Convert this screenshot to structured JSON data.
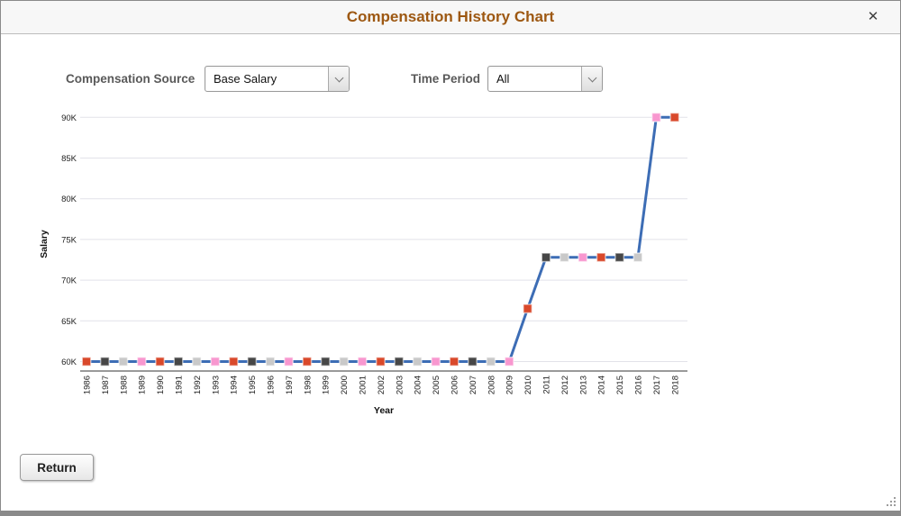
{
  "window": {
    "title": "Compensation History Chart",
    "close_icon": "✕"
  },
  "controls": {
    "comp_source_label": "Compensation Source",
    "comp_source_value": "Base Salary",
    "time_period_label": "Time Period",
    "time_period_value": "All"
  },
  "chart_data": {
    "type": "line",
    "title": "",
    "xlabel": "Year",
    "ylabel": "Salary",
    "x": [
      1986,
      1987,
      1988,
      1989,
      1990,
      1991,
      1992,
      1993,
      1994,
      1995,
      1996,
      1997,
      1998,
      1999,
      2000,
      2001,
      2002,
      2003,
      2004,
      2005,
      2006,
      2007,
      2008,
      2009,
      2010,
      2011,
      2012,
      2013,
      2014,
      2015,
      2016,
      2017,
      2018
    ],
    "values": [
      60000,
      60000,
      60000,
      60000,
      60000,
      60000,
      60000,
      60000,
      60000,
      60000,
      60000,
      60000,
      60000,
      60000,
      60000,
      60000,
      60000,
      60000,
      60000,
      60000,
      60000,
      60000,
      60000,
      60000,
      66500,
      72800,
      72800,
      72800,
      72800,
      72800,
      72800,
      90000,
      90000
    ],
    "ylim": [
      60000,
      90000
    ],
    "yticks": [
      "60K",
      "65K",
      "70K",
      "75K",
      "80K",
      "85K",
      "90K"
    ],
    "grid": true,
    "legend": "none",
    "line_color": "#3d6db5",
    "marker_colors": [
      "#d9492b",
      "#474747",
      "#c9c9c9",
      "#f897cf"
    ],
    "grid_color": "#e2e2e9",
    "axis_color": "#9a9a9a",
    "tick_color": "#222222"
  },
  "footer": {
    "return_label": "Return"
  }
}
